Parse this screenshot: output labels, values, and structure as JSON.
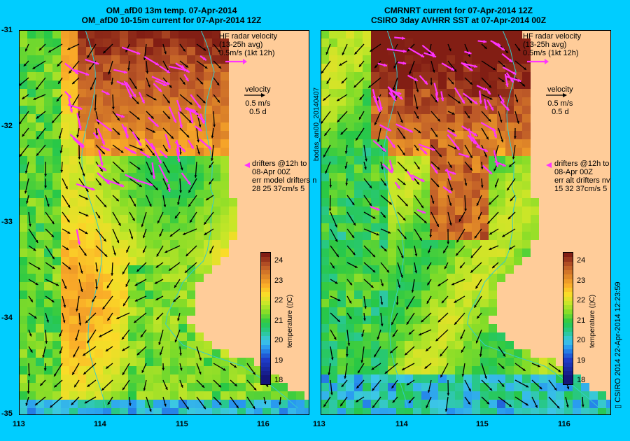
{
  "left_panel": {
    "title_line1": "OM_afD0 13m temp. 07-Apr-2014",
    "title_line2": "OM_afD0 10-15m current for 07-Apr-2014 12Z",
    "hf_label": [
      "HF radar velocity",
      "(13-25h avg)",
      "0.5m/s (1kt 12h)"
    ],
    "velocity_label": [
      "velocity",
      "0.5 m/s",
      "0.5 d"
    ],
    "drifter_label": [
      "drifters @12h to",
      "08-Apr 00Z",
      "err model drifters n",
      "28 25 37cm/s 5"
    ]
  },
  "right_panel": {
    "title_line1": "CMRNRT current for 07-Apr-2014 12Z",
    "title_line2": "CSIRO 3day AVHRR SST at 07-Apr-2014 00Z",
    "hf_label": [
      "HF radar velocity",
      "(13-25h avg)",
      "0.5m/s (1kt 12h)"
    ],
    "velocity_label": [
      "velocity",
      "0.5 m/s",
      "0.5 d"
    ],
    "drifter_label": [
      "drifters @12h to",
      "08-Apr 00Z",
      "err alt drifters nv",
      "15 32 37cm/s 5"
    ],
    "side_label": "bodas_an00_20140407"
  },
  "y_ticks": [
    "-31",
    "-32",
    "-33",
    "-34",
    "-35"
  ],
  "x_ticks_left": [
    "113",
    "114",
    "115",
    "116"
  ],
  "x_ticks_right": [
    "113",
    "114",
    "115",
    "116"
  ],
  "colorbar": {
    "ticks": [
      "24",
      "23",
      "22",
      "21",
      "20",
      "19",
      "18"
    ],
    "label": "temperature (▯C)"
  },
  "credit": "▯ CSIRO 2014   22-Apr-2014 12:23:59",
  "colors": {
    "background": "#00cdff",
    "land": "#ffcc99",
    "hf_arrow": "#ff33ff",
    "contour": "#33cccc"
  }
}
